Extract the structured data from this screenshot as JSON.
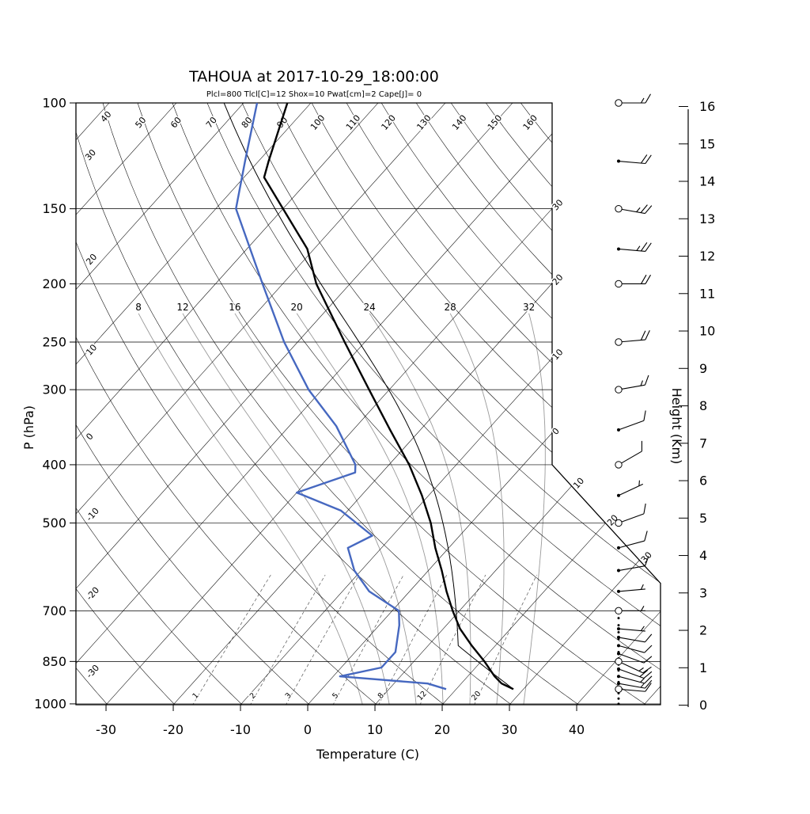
{
  "header": {
    "title": "TAHOUA at 2017-10-29_18:00:00",
    "params_line": "Plcl=800 Tlcl[C]=12 Shox=10 Pwat[cm]=2 Cape[J]= 0",
    "params_color": "#a63a20"
  },
  "axes": {
    "pressure_label": "P (hPa)",
    "temperature_label": "Temperature (C)",
    "height_label": "Height (Km)",
    "pressure_ticks": [
      100,
      150,
      200,
      250,
      300,
      400,
      500,
      700,
      850,
      1000
    ],
    "temperature_ticks": [
      -30,
      -20,
      -10,
      0,
      10,
      20,
      30,
      40
    ],
    "height_ticks": [
      0,
      1,
      2,
      3,
      4,
      5,
      6,
      7,
      8,
      9,
      10,
      11,
      12,
      13,
      14,
      15,
      16
    ]
  },
  "chart_data": {
    "type": "skewt_log_p",
    "pressure_range": [
      100,
      1050
    ],
    "temperature_axis_range": [
      -30,
      40
    ],
    "height_axis_range_km": [
      0,
      16
    ],
    "skew_labels": {
      "dry_adiabats_top": [
        "50",
        "60",
        "70",
        "80",
        "90",
        "100",
        "110",
        "120",
        "130",
        "140",
        "150",
        "160"
      ],
      "dry_adiabats_left": [
        "40",
        "30",
        "20",
        "10",
        "0",
        "-10",
        "-20",
        "-30"
      ],
      "isotherms_right": [
        "30",
        "20",
        "10",
        "0"
      ],
      "isotherms_lower_right": [
        "10",
        "20",
        "30"
      ],
      "moist_adiabats": [
        "8",
        "12",
        "16",
        "20",
        "24",
        "28",
        "32"
      ],
      "mixing_ratio": [
        "1",
        "2",
        "3",
        "5",
        "8",
        "12",
        "20"
      ]
    },
    "temperature_profile_C": [
      [
        945,
        28.5
      ],
      [
        925,
        26
      ],
      [
        900,
        24
      ],
      [
        850,
        20.5
      ],
      [
        800,
        16.5
      ],
      [
        750,
        12.5
      ],
      [
        700,
        9
      ],
      [
        650,
        5.5
      ],
      [
        600,
        2
      ],
      [
        550,
        -2
      ],
      [
        500,
        -6
      ],
      [
        450,
        -11
      ],
      [
        400,
        -17
      ],
      [
        350,
        -24.5
      ],
      [
        300,
        -33
      ],
      [
        250,
        -43
      ],
      [
        200,
        -55
      ],
      [
        175,
        -61
      ],
      [
        150,
        -70
      ],
      [
        133,
        -77
      ],
      [
        125,
        -78.5
      ],
      [
        100,
        -83.5
      ]
    ],
    "dewpoint_profile_C": [
      [
        945,
        18.5
      ],
      [
        925,
        15
      ],
      [
        900,
        1
      ],
      [
        870,
        6
      ],
      [
        820,
        6
      ],
      [
        740,
        3
      ],
      [
        700,
        1
      ],
      [
        650,
        -6
      ],
      [
        600,
        -11
      ],
      [
        550,
        -15
      ],
      [
        525,
        -13
      ],
      [
        477,
        -21
      ],
      [
        445,
        -30
      ],
      [
        412,
        -24
      ],
      [
        400,
        -25
      ],
      [
        345,
        -33
      ],
      [
        300,
        -42
      ],
      [
        250,
        -52
      ],
      [
        200,
        -63
      ],
      [
        150,
        -77
      ],
      [
        125,
        -82
      ],
      [
        100,
        -88
      ]
    ],
    "parcel": {
      "p_surface_hPa": 945,
      "t_surface_C": 28.5,
      "p_lcl_hPa": 800
    },
    "winds_kt": [
      [
        945,
        95,
        10
      ],
      [
        925,
        100,
        15
      ],
      [
        900,
        105,
        15
      ],
      [
        875,
        110,
        20
      ],
      [
        850,
        115,
        15
      ],
      [
        825,
        110,
        10
      ],
      [
        800,
        105,
        10
      ],
      [
        775,
        100,
        10
      ],
      [
        750,
        95,
        5
      ],
      [
        700,
        90,
        5
      ],
      [
        650,
        85,
        5
      ],
      [
        600,
        80,
        10
      ],
      [
        550,
        75,
        10
      ],
      [
        500,
        70,
        10
      ],
      [
        450,
        65,
        5
      ],
      [
        400,
        60,
        10
      ],
      [
        350,
        70,
        10
      ],
      [
        300,
        80,
        15
      ],
      [
        250,
        85,
        20
      ],
      [
        200,
        90,
        20
      ],
      [
        175,
        95,
        25
      ],
      [
        150,
        100,
        25
      ],
      [
        125,
        95,
        20
      ],
      [
        100,
        90,
        15
      ]
    ],
    "colors": {
      "temperature": "#000000",
      "dewpoint": "#4668c0",
      "parcel": "#000000",
      "isotherm": "#000000",
      "dry_adiabat": "#000000",
      "moist_adiabat": "#9a9a9a",
      "mixing_ratio": "#555555",
      "frame": "#000000"
    }
  }
}
